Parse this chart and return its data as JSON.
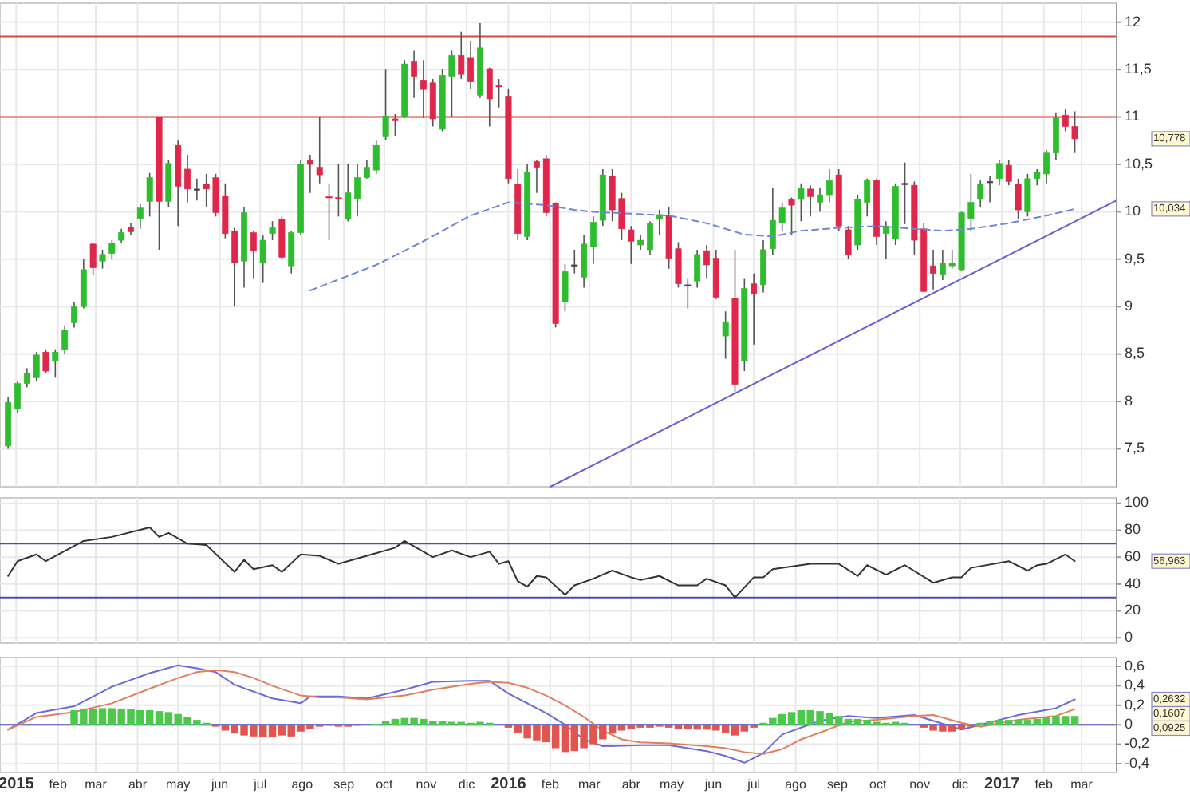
{
  "chart_data": [
    {
      "type": "candlestick",
      "xlim": [
        "2014-12-20",
        "2017-03-27"
      ],
      "ylim": [
        7.1,
        12.2
      ],
      "tick_labels": "y",
      "grid": true,
      "xticks": [
        {
          "value": "2015-01-01",
          "label": null
        },
        {
          "value": "2015-02-01",
          "label": null
        },
        {
          "value": "2015-03-01",
          "label": null
        },
        {
          "value": "2015-04-01",
          "label": null
        },
        {
          "value": "2015-05-01",
          "label": null
        },
        {
          "value": "2015-06-01",
          "label": null
        },
        {
          "value": "2015-07-01",
          "label": null
        },
        {
          "value": "2015-08-01",
          "label": null
        },
        {
          "value": "2015-09-01",
          "label": null
        },
        {
          "value": "2015-10-01",
          "label": null
        },
        {
          "value": "2015-11-01",
          "label": null
        },
        {
          "value": "2015-12-01",
          "label": null
        },
        {
          "value": "2016-01-01",
          "label": null
        },
        {
          "value": "2016-02-01",
          "label": null
        },
        {
          "value": "2016-03-01",
          "label": null
        },
        {
          "value": "2016-04-01",
          "label": null
        },
        {
          "value": "2016-05-01",
          "label": null
        },
        {
          "value": "2016-06-01",
          "label": null
        },
        {
          "value": "2016-07-01",
          "label": null
        },
        {
          "value": "2016-08-01",
          "label": null
        },
        {
          "value": "2016-09-01",
          "label": null
        },
        {
          "value": "2016-10-01",
          "label": null
        },
        {
          "value": "2016-11-01",
          "label": null
        },
        {
          "value": "2016-12-01",
          "label": null
        },
        {
          "value": "2017-01-01",
          "label": null
        },
        {
          "value": "2017-02-01",
          "label": null
        },
        {
          "value": "2017-03-01",
          "label": null
        }
      ],
      "yticks": [
        {
          "value": 7.5,
          "label": "7,5"
        },
        8,
        {
          "value": 8.5,
          "label": "8,5"
        },
        9,
        {
          "value": 9.5,
          "label": "9,5"
        },
        10,
        {
          "value": 10.5,
          "label": "10,5"
        },
        11,
        {
          "value": 11.5,
          "label": "11,5"
        },
        12
      ],
      "x": [
        "2014-12-26",
        "2015-01-02",
        "2015-01-09",
        "2015-01-16",
        "2015-01-23",
        "2015-01-30",
        "2015-02-06",
        "2015-02-13",
        "2015-02-20",
        "2015-02-27",
        "2015-03-06",
        "2015-03-13",
        "2015-03-20",
        "2015-03-27",
        "2015-04-03",
        "2015-04-10",
        "2015-04-17",
        "2015-04-24",
        "2015-05-01",
        "2015-05-08",
        "2015-05-15",
        "2015-05-22",
        "2015-05-29",
        "2015-06-05",
        "2015-06-12",
        "2015-06-19",
        "2015-06-26",
        "2015-07-03",
        "2015-07-10",
        "2015-07-17",
        "2015-07-24",
        "2015-07-31",
        "2015-08-07",
        "2015-08-14",
        "2015-08-21",
        "2015-08-28",
        "2015-09-04",
        "2015-09-11",
        "2015-09-18",
        "2015-09-25",
        "2015-10-02",
        "2015-10-09",
        "2015-10-16",
        "2015-10-23",
        "2015-10-30",
        "2015-11-06",
        "2015-11-13",
        "2015-11-20",
        "2015-11-27",
        "2015-12-04",
        "2015-12-11",
        "2015-12-18",
        "2015-12-25",
        "2016-01-01",
        "2016-01-08",
        "2016-01-15",
        "2016-01-22",
        "2016-01-29",
        "2016-02-05",
        "2016-02-12",
        "2016-02-19",
        "2016-02-26",
        "2016-03-04",
        "2016-03-11",
        "2016-03-18",
        "2016-03-25",
        "2016-04-01",
        "2016-04-08",
        "2016-04-15",
        "2016-04-22",
        "2016-04-29",
        "2016-05-06",
        "2016-05-13",
        "2016-05-20",
        "2016-05-27",
        "2016-06-03",
        "2016-06-10",
        "2016-06-17",
        "2016-06-24",
        "2016-07-01",
        "2016-07-08",
        "2016-07-15",
        "2016-07-22",
        "2016-07-29",
        "2016-08-05",
        "2016-08-12",
        "2016-08-19",
        "2016-08-26",
        "2016-09-02",
        "2016-09-09",
        "2016-09-16",
        "2016-09-23",
        "2016-09-30",
        "2016-10-07",
        "2016-10-14",
        "2016-10-21",
        "2016-10-28",
        "2016-11-04",
        "2016-11-11",
        "2016-11-18",
        "2016-11-25",
        "2016-12-02",
        "2016-12-09",
        "2016-12-16",
        "2016-12-23",
        "2016-12-30",
        "2017-01-06",
        "2017-01-13",
        "2017-01-20",
        "2017-01-27",
        "2017-02-03",
        "2017-02-10",
        "2017-02-17",
        "2017-02-24"
      ],
      "ohlc": [
        [
          7.53,
          8.05,
          7.5,
          7.99
        ],
        [
          7.92,
          8.22,
          7.88,
          8.19
        ],
        [
          8.19,
          8.35,
          8.15,
          8.3
        ],
        [
          8.25,
          8.52,
          8.22,
          8.49
        ],
        [
          8.52,
          8.55,
          8.3,
          8.32
        ],
        [
          8.43,
          8.55,
          8.25,
          8.52
        ],
        [
          8.55,
          8.8,
          8.5,
          8.75
        ],
        [
          8.83,
          9.05,
          8.78,
          9.0
        ],
        [
          9.0,
          9.5,
          8.98,
          9.39
        ],
        [
          9.66,
          9.67,
          9.33,
          9.41
        ],
        [
          9.48,
          9.6,
          9.4,
          9.55
        ],
        [
          9.56,
          9.7,
          9.5,
          9.67
        ],
        [
          9.7,
          9.82,
          9.67,
          9.78
        ],
        [
          9.84,
          9.88,
          9.76,
          9.79
        ],
        [
          9.93,
          10.08,
          9.82,
          10.04
        ],
        [
          10.11,
          10.41,
          9.95,
          10.36
        ],
        [
          11.0,
          11.0,
          9.6,
          10.11
        ],
        [
          10.11,
          10.55,
          10.05,
          10.51
        ],
        [
          10.7,
          10.75,
          9.85,
          10.27
        ],
        [
          10.45,
          10.6,
          10.1,
          10.24
        ],
        [
          10.24,
          10.35,
          10.12,
          10.24
        ],
        [
          10.29,
          10.4,
          10.05,
          10.24
        ],
        [
          10.36,
          10.4,
          9.95,
          9.99
        ],
        [
          10.17,
          10.3,
          9.72,
          9.77
        ],
        [
          9.8,
          9.83,
          9.0,
          9.46
        ],
        [
          9.48,
          10.05,
          9.2,
          9.99
        ],
        [
          9.78,
          9.8,
          9.3,
          9.59
        ],
        [
          9.46,
          9.75,
          9.25,
          9.7
        ],
        [
          9.77,
          9.9,
          9.7,
          9.83
        ],
        [
          9.92,
          9.95,
          9.5,
          9.52
        ],
        [
          9.43,
          9.8,
          9.35,
          9.78
        ],
        [
          9.78,
          10.55,
          9.75,
          10.5
        ],
        [
          10.54,
          10.6,
          10.2,
          10.5
        ],
        [
          10.47,
          11.0,
          10.3,
          10.39
        ],
        [
          10.16,
          10.3,
          9.7,
          10.15
        ],
        [
          10.15,
          10.5,
          9.95,
          10.14
        ],
        [
          9.92,
          10.5,
          9.9,
          10.2
        ],
        [
          10.14,
          10.5,
          9.95,
          10.36
        ],
        [
          10.36,
          10.55,
          10.35,
          10.47
        ],
        [
          10.44,
          10.75,
          10.4,
          10.7
        ],
        [
          10.79,
          11.5,
          10.76,
          11.01
        ],
        [
          10.98,
          11.03,
          10.8,
          10.96
        ],
        [
          11.01,
          11.6,
          10.99,
          11.56
        ],
        [
          11.58,
          11.7,
          11.2,
          11.43
        ],
        [
          11.39,
          11.6,
          10.99,
          11.29
        ],
        [
          11.36,
          11.4,
          10.9,
          10.98
        ],
        [
          10.87,
          11.5,
          10.85,
          11.44
        ],
        [
          11.43,
          11.7,
          11.0,
          11.65
        ],
        [
          11.65,
          11.9,
          11.4,
          11.45
        ],
        [
          11.62,
          11.8,
          11.3,
          11.37
        ],
        [
          11.23,
          11.99,
          11.2,
          11.73
        ],
        [
          11.51,
          11.52,
          10.9,
          11.19
        ],
        [
          11.33,
          11.4,
          11.1,
          11.32
        ],
        [
          11.22,
          11.3,
          10.3,
          10.35
        ],
        [
          10.29,
          10.45,
          9.7,
          9.77
        ],
        [
          9.74,
          10.5,
          9.7,
          10.42
        ],
        [
          10.53,
          10.55,
          10.2,
          10.47
        ],
        [
          10.56,
          10.6,
          9.95,
          9.99
        ],
        [
          10.09,
          10.1,
          8.78,
          8.82
        ],
        [
          9.05,
          9.45,
          8.95,
          9.37
        ],
        [
          9.44,
          9.6,
          9.35,
          9.44
        ],
        [
          9.31,
          9.75,
          9.2,
          9.66
        ],
        [
          9.63,
          9.95,
          9.45,
          9.89
        ],
        [
          9.91,
          10.45,
          9.85,
          10.39
        ],
        [
          10.38,
          10.45,
          9.9,
          10.02
        ],
        [
          10.14,
          10.2,
          9.7,
          9.82
        ],
        [
          9.81,
          9.85,
          9.45,
          9.69
        ],
        [
          9.65,
          9.75,
          9.6,
          9.7
        ],
        [
          9.6,
          9.9,
          9.55,
          9.88
        ],
        [
          9.92,
          10.02,
          9.75,
          9.97
        ],
        [
          9.96,
          10.05,
          9.4,
          9.51
        ],
        [
          9.61,
          9.68,
          9.2,
          9.24
        ],
        [
          9.23,
          9.3,
          8.98,
          9.23
        ],
        [
          9.27,
          9.6,
          9.2,
          9.55
        ],
        [
          9.59,
          9.65,
          9.3,
          9.44
        ],
        [
          9.51,
          9.6,
          9.08,
          9.1
        ],
        [
          8.69,
          8.95,
          8.45,
          8.84
        ],
        [
          9.09,
          9.6,
          8.1,
          8.18
        ],
        [
          8.43,
          9.3,
          8.32,
          9.19
        ],
        [
          9.24,
          9.35,
          8.6,
          9.13
        ],
        [
          9.23,
          9.7,
          9.15,
          9.6
        ],
        [
          9.61,
          10.25,
          9.55,
          9.91
        ],
        [
          9.88,
          10.1,
          9.8,
          10.04
        ],
        [
          10.13,
          10.15,
          9.75,
          10.07
        ],
        [
          10.13,
          10.3,
          9.9,
          10.25
        ],
        [
          10.24,
          10.28,
          9.95,
          10.16
        ],
        [
          10.1,
          10.25,
          10.0,
          10.18
        ],
        [
          10.18,
          10.45,
          10.1,
          10.33
        ],
        [
          10.39,
          10.45,
          9.8,
          9.85
        ],
        [
          9.81,
          9.85,
          9.5,
          9.55
        ],
        [
          9.65,
          10.18,
          9.6,
          10.13
        ],
        [
          10.1,
          10.35,
          9.95,
          10.33
        ],
        [
          10.33,
          10.35,
          9.65,
          9.74
        ],
        [
          9.77,
          9.9,
          9.5,
          9.85
        ],
        [
          9.71,
          10.3,
          9.65,
          10.27
        ],
        [
          10.3,
          10.52,
          9.87,
          10.3
        ],
        [
          10.28,
          10.32,
          9.55,
          9.7
        ],
        [
          9.82,
          9.88,
          9.15,
          9.16
        ],
        [
          9.43,
          9.6,
          9.18,
          9.35
        ],
        [
          9.34,
          9.6,
          9.28,
          9.46
        ],
        [
          9.43,
          9.6,
          9.4,
          9.46
        ],
        [
          9.39,
          10.0,
          9.38,
          9.99
        ],
        [
          9.93,
          10.4,
          9.8,
          10.1
        ],
        [
          10.13,
          10.33,
          10.05,
          10.29
        ],
        [
          10.32,
          10.38,
          10.1,
          10.32
        ],
        [
          10.35,
          10.55,
          10.28,
          10.51
        ],
        [
          10.49,
          10.55,
          10.28,
          10.32
        ],
        [
          10.29,
          10.35,
          9.92,
          10.02
        ],
        [
          10.0,
          10.4,
          9.95,
          10.35
        ],
        [
          10.35,
          10.45,
          10.28,
          10.42
        ],
        [
          10.4,
          10.65,
          10.3,
          10.62
        ],
        [
          10.62,
          11.05,
          10.55,
          10.99
        ],
        [
          11.02,
          11.08,
          10.85,
          10.9
        ],
        [
          10.9,
          11.06,
          10.62,
          10.77
        ]
      ],
      "series": [
        {
          "type": "line",
          "color": "#6f86d6",
          "line_style": "dashed",
          "x": [
            "2015-08-07",
            "2015-09-25",
            "2015-10-30",
            "2015-12-04",
            "2016-01-01",
            "2016-01-29",
            "2016-02-19",
            "2016-03-04",
            "2016-04-01",
            "2016-04-29",
            "2016-05-27",
            "2016-06-24",
            "2016-07-15",
            "2016-08-05",
            "2016-09-02",
            "2016-09-30",
            "2016-10-28",
            "2016-11-18",
            "2016-12-09",
            "2017-01-06",
            "2017-02-03",
            "2017-02-24"
          ],
          "values": [
            9.17,
            9.44,
            9.69,
            9.96,
            10.1,
            10.07,
            10.02,
            10.0,
            9.98,
            9.96,
            9.88,
            9.76,
            9.74,
            9.8,
            9.83,
            9.85,
            9.82,
            9.8,
            9.82,
            9.88,
            9.96,
            10.03
          ]
        },
        {
          "type": "line",
          "color": "#6a5fd0",
          "x": [
            "2016-02-01",
            "2017-03-27"
          ],
          "values": [
            7.1,
            10.12
          ]
        }
      ],
      "ref_lines": [
        {
          "axis": "y",
          "value": 11,
          "color": "#d9473d"
        },
        {
          "axis": "y",
          "value": 11.85,
          "color": "#d9473d"
        }
      ],
      "annotations": [
        "10,778",
        "10,034"
      ]
    },
    {
      "type": "line",
      "xlim": [
        "2014-12-20",
        "2017-03-27"
      ],
      "ylim": [
        -4,
        104
      ],
      "tick_labels": "y",
      "grid": true,
      "xticks": [
        {
          "value": "2015-01-01",
          "label": null
        },
        {
          "value": "2015-02-01",
          "label": null
        },
        {
          "value": "2015-03-01",
          "label": null
        },
        {
          "value": "2015-04-01",
          "label": null
        },
        {
          "value": "2015-05-01",
          "label": null
        },
        {
          "value": "2015-06-01",
          "label": null
        },
        {
          "value": "2015-07-01",
          "label": null
        },
        {
          "value": "2015-08-01",
          "label": null
        },
        {
          "value": "2015-09-01",
          "label": null
        },
        {
          "value": "2015-10-01",
          "label": null
        },
        {
          "value": "2015-11-01",
          "label": null
        },
        {
          "value": "2015-12-01",
          "label": null
        },
        {
          "value": "2016-01-01",
          "label": null
        },
        {
          "value": "2016-02-01",
          "label": null
        },
        {
          "value": "2016-03-01",
          "label": null
        },
        {
          "value": "2016-04-01",
          "label": null
        },
        {
          "value": "2016-05-01",
          "label": null
        },
        {
          "value": "2016-06-01",
          "label": null
        },
        {
          "value": "2016-07-01",
          "label": null
        },
        {
          "value": "2016-08-01",
          "label": null
        },
        {
          "value": "2016-09-01",
          "label": null
        },
        {
          "value": "2016-10-01",
          "label": null
        },
        {
          "value": "2016-11-01",
          "label": null
        },
        {
          "value": "2016-12-01",
          "label": null
        },
        {
          "value": "2017-01-01",
          "label": null
        },
        {
          "value": "2017-02-01",
          "label": null
        },
        {
          "value": "2017-03-01",
          "label": null
        }
      ],
      "yticks": [
        0,
        20,
        40,
        60,
        80,
        100
      ],
      "series": [
        {
          "color": "#333333",
          "x": [
            "2014-12-26",
            "2015-01-02",
            "2015-01-16",
            "2015-01-23",
            "2015-02-20",
            "2015-03-13",
            "2015-04-10",
            "2015-04-17",
            "2015-04-24",
            "2015-05-08",
            "2015-05-22",
            "2015-06-12",
            "2015-06-19",
            "2015-06-26",
            "2015-07-10",
            "2015-07-17",
            "2015-07-31",
            "2015-08-14",
            "2015-08-28",
            "2015-09-18",
            "2015-10-09",
            "2015-10-16",
            "2015-11-06",
            "2015-11-20",
            "2015-12-04",
            "2015-12-18",
            "2015-12-25",
            "2016-01-01",
            "2016-01-08",
            "2016-01-15",
            "2016-01-22",
            "2016-01-29",
            "2016-02-12",
            "2016-02-19",
            "2016-03-04",
            "2016-03-18",
            "2016-04-01",
            "2016-04-08",
            "2016-04-22",
            "2016-05-06",
            "2016-05-20",
            "2016-05-27",
            "2016-06-10",
            "2016-06-17",
            "2016-07-01",
            "2016-07-08",
            "2016-07-15",
            "2016-08-12",
            "2016-09-02",
            "2016-09-16",
            "2016-09-23",
            "2016-10-07",
            "2016-10-21",
            "2016-11-11",
            "2016-11-25",
            "2016-12-02",
            "2016-12-09",
            "2017-01-06",
            "2017-01-20",
            "2017-01-27",
            "2017-02-03",
            "2017-02-17",
            "2017-02-24"
          ],
          "values": [
            46,
            57,
            62,
            57,
            72,
            75,
            82,
            75,
            78,
            70,
            69,
            49,
            58,
            51,
            54,
            49,
            62,
            61,
            55,
            61,
            67,
            72,
            60,
            65,
            60,
            64,
            55,
            57,
            42,
            38,
            46,
            45,
            32,
            39,
            44,
            50,
            45,
            43,
            46,
            39,
            39,
            44,
            39,
            30,
            45,
            45,
            51,
            55,
            55,
            46,
            54,
            47,
            54,
            41,
            45,
            45,
            52,
            57,
            50,
            54,
            55,
            62,
            57
          ]
        }
      ],
      "ref_lines": [
        {
          "axis": "y",
          "value": 70,
          "color": "#4b4bb0"
        },
        {
          "axis": "y",
          "value": 30,
          "color": "#4b4bb0"
        }
      ],
      "annotations": [
        "56,963"
      ]
    },
    {
      "type": "bar",
      "xlim": [
        "2014-12-20",
        "2017-03-27"
      ],
      "ylim": [
        -0.49,
        0.69
      ],
      "grid": true,
      "xticks": [
        {
          "value": "2015-01-01",
          "label": "2015"
        },
        {
          "value": "2015-02-01",
          "label": "feb"
        },
        {
          "value": "2015-03-01",
          "label": "mar"
        },
        {
          "value": "2015-04-01",
          "label": "abr"
        },
        {
          "value": "2015-05-01",
          "label": "may"
        },
        {
          "value": "2015-06-01",
          "label": "jun"
        },
        {
          "value": "2015-07-01",
          "label": "jul"
        },
        {
          "value": "2015-08-01",
          "label": "ago"
        },
        {
          "value": "2015-09-01",
          "label": "sep"
        },
        {
          "value": "2015-10-01",
          "label": "oct"
        },
        {
          "value": "2015-11-01",
          "label": "nov"
        },
        {
          "value": "2015-12-01",
          "label": "dic"
        },
        {
          "value": "2016-01-01",
          "label": "2016"
        },
        {
          "value": "2016-02-01",
          "label": "feb"
        },
        {
          "value": "2016-03-01",
          "label": "mar"
        },
        {
          "value": "2016-04-01",
          "label": "abr"
        },
        {
          "value": "2016-05-01",
          "label": "may"
        },
        {
          "value": "2016-06-01",
          "label": "jun"
        },
        {
          "value": "2016-07-01",
          "label": "jul"
        },
        {
          "value": "2016-08-01",
          "label": "ago"
        },
        {
          "value": "2016-09-01",
          "label": "sep"
        },
        {
          "value": "2016-10-01",
          "label": "oct"
        },
        {
          "value": "2016-11-01",
          "label": "nov"
        },
        {
          "value": "2016-12-01",
          "label": "dic"
        },
        {
          "value": "2017-01-01",
          "label": "2017"
        },
        {
          "value": "2017-02-01",
          "label": "feb"
        },
        {
          "value": "2017-03-01",
          "label": "mar"
        }
      ],
      "yticks": [
        {
          "value": -0.4,
          "label": "-0,4"
        },
        {
          "value": -0.2,
          "label": "-0,2"
        },
        0,
        {
          "value": 0.2,
          "label": "0,2"
        },
        {
          "value": 0.4,
          "label": "0,4"
        },
        {
          "value": 0.6,
          "label": "0,6"
        }
      ],
      "series": [
        {
          "type": "line",
          "color": "#6a6ad8",
          "x": [
            "2014-12-26",
            "2015-01-16",
            "2015-02-13",
            "2015-03-13",
            "2015-04-10",
            "2015-05-01",
            "2015-05-15",
            "2015-05-29",
            "2015-06-12",
            "2015-07-10",
            "2015-07-31",
            "2015-08-07",
            "2015-08-28",
            "2015-09-18",
            "2015-10-16",
            "2015-11-06",
            "2015-12-04",
            "2015-12-18",
            "2016-01-01",
            "2016-01-29",
            "2016-02-12",
            "2016-02-26",
            "2016-03-11",
            "2016-04-08",
            "2016-04-29",
            "2016-05-27",
            "2016-06-10",
            "2016-06-24",
            "2016-07-08",
            "2016-07-22",
            "2016-08-19",
            "2016-09-09",
            "2016-09-30",
            "2016-10-28",
            "2016-11-11",
            "2016-12-02",
            "2016-12-16",
            "2017-01-13",
            "2017-02-10",
            "2017-02-24"
          ],
          "values": [
            -0.05,
            0.12,
            0.19,
            0.39,
            0.53,
            0.61,
            0.58,
            0.54,
            0.41,
            0.27,
            0.22,
            0.29,
            0.29,
            0.27,
            0.36,
            0.44,
            0.45,
            0.45,
            0.32,
            0.12,
            0,
            -0.15,
            -0.22,
            -0.21,
            -0.21,
            -0.27,
            -0.32,
            -0.39,
            -0.29,
            -0.1,
            0.04,
            0.09,
            0.07,
            0.1,
            0.04,
            -0.05,
            0,
            0.1,
            0.17,
            0.26
          ]
        },
        {
          "type": "line",
          "color": "#e0805f",
          "x": [
            "2014-12-26",
            "2015-01-16",
            "2015-02-13",
            "2015-03-13",
            "2015-04-10",
            "2015-05-01",
            "2015-05-15",
            "2015-05-29",
            "2015-06-12",
            "2015-06-26",
            "2015-07-10",
            "2015-07-31",
            "2015-08-14",
            "2015-08-28",
            "2015-09-18",
            "2015-10-16",
            "2015-11-06",
            "2015-12-04",
            "2015-12-18",
            "2016-01-01",
            "2016-01-15",
            "2016-01-29",
            "2016-02-12",
            "2016-02-26",
            "2016-03-11",
            "2016-03-25",
            "2016-04-08",
            "2016-04-29",
            "2016-05-27",
            "2016-06-10",
            "2016-06-24",
            "2016-07-08",
            "2016-07-22",
            "2016-08-05",
            "2016-08-19",
            "2016-09-09",
            "2016-09-30",
            "2016-10-28",
            "2016-11-11",
            "2016-12-02",
            "2016-12-16",
            "2017-01-13",
            "2017-02-10",
            "2017-02-24"
          ],
          "values": [
            -0.05,
            0.08,
            0.13,
            0.22,
            0.37,
            0.48,
            0.54,
            0.56,
            0.54,
            0.48,
            0.4,
            0.3,
            0.28,
            0.28,
            0.26,
            0.3,
            0.36,
            0.42,
            0.44,
            0.43,
            0.38,
            0.3,
            0.2,
            0.08,
            -0.06,
            -0.15,
            -0.18,
            -0.19,
            -0.22,
            -0.24,
            -0.28,
            -0.3,
            -0.25,
            -0.15,
            -0.08,
            0.03,
            0.05,
            0.09,
            0.1,
            0.02,
            -0.02,
            0.05,
            0.09,
            0.16
          ]
        },
        {
          "color": "#4cc94c",
          "x": [
            "2015-02-13",
            "2015-02-20",
            "2015-02-27",
            "2015-03-06",
            "2015-03-13",
            "2015-03-20",
            "2015-03-27",
            "2015-04-03",
            "2015-04-10",
            "2015-04-17",
            "2015-04-24",
            "2015-05-01",
            "2015-05-08",
            "2015-05-15",
            "2015-05-22",
            "2015-09-25",
            "2015-10-02",
            "2015-10-09",
            "2015-10-16",
            "2015-10-23",
            "2015-10-30",
            "2015-11-06",
            "2015-11-13",
            "2015-11-20",
            "2015-11-27",
            "2015-12-04",
            "2015-12-11",
            "2015-12-18",
            "2016-07-08",
            "2016-07-15",
            "2016-07-22",
            "2016-07-29",
            "2016-08-05",
            "2016-08-12",
            "2016-08-19",
            "2016-08-26",
            "2016-09-02",
            "2016-09-09",
            "2016-09-16",
            "2016-09-23",
            "2016-09-30",
            "2016-10-07",
            "2016-10-14",
            "2016-10-21",
            "2016-12-16",
            "2016-12-23",
            "2016-12-30",
            "2017-01-06",
            "2017-01-13",
            "2017-01-20",
            "2017-01-27",
            "2017-02-03",
            "2017-02-10",
            "2017-02-17",
            "2017-02-24"
          ],
          "values": [
            0.15,
            0.16,
            0.16,
            0.17,
            0.17,
            0.16,
            0.16,
            0.15,
            0.15,
            0.14,
            0.13,
            0.11,
            0.08,
            0.05,
            0.02,
            0.01,
            0.04,
            0.06,
            0.07,
            0.07,
            0.06,
            0.04,
            0.04,
            0.03,
            0.03,
            0.02,
            0.03,
            0.02,
            0.02,
            0.07,
            0.11,
            0.13,
            0.15,
            0.15,
            0.14,
            0.12,
            0.09,
            0.06,
            0.06,
            0.05,
            0.03,
            0.02,
            0.03,
            0.02,
            0.02,
            0.04,
            0.05,
            0.05,
            0.05,
            0.05,
            0.06,
            0.08,
            0.09,
            0.09,
            0.09
          ]
        },
        {
          "color": "#e0554f",
          "x": [
            "2015-05-29",
            "2015-06-05",
            "2015-06-12",
            "2015-06-19",
            "2015-06-26",
            "2015-07-03",
            "2015-07-10",
            "2015-07-17",
            "2015-07-24",
            "2015-07-31",
            "2015-08-07",
            "2015-08-14",
            "2015-08-21",
            "2015-08-28",
            "2015-09-04",
            "2015-09-11",
            "2016-01-01",
            "2016-01-08",
            "2016-01-15",
            "2016-01-22",
            "2016-01-29",
            "2016-02-05",
            "2016-02-12",
            "2016-02-19",
            "2016-02-26",
            "2016-03-04",
            "2016-03-11",
            "2016-03-18",
            "2016-03-25",
            "2016-04-01",
            "2016-04-08",
            "2016-04-15",
            "2016-04-22",
            "2016-04-29",
            "2016-05-06",
            "2016-05-13",
            "2016-05-20",
            "2016-05-27",
            "2016-06-03",
            "2016-06-10",
            "2016-06-17",
            "2016-06-24",
            "2016-07-01",
            "2016-11-04",
            "2016-11-11",
            "2016-11-18",
            "2016-11-25",
            "2016-12-02",
            "2016-12-09"
          ],
          "values": [
            -0.02,
            -0.06,
            -0.09,
            -0.11,
            -0.12,
            -0.13,
            -0.13,
            -0.11,
            -0.12,
            -0.07,
            -0.04,
            -0.02,
            -0.01,
            -0.02,
            -0.02,
            -0.01,
            -0.03,
            -0.08,
            -0.14,
            -0.16,
            -0.18,
            -0.24,
            -0.28,
            -0.27,
            -0.24,
            -0.2,
            -0.15,
            -0.09,
            -0.06,
            -0.04,
            -0.03,
            -0.03,
            -0.02,
            -0.03,
            -0.04,
            -0.04,
            -0.05,
            -0.05,
            -0.06,
            -0.08,
            -0.11,
            -0.07,
            -0.03,
            -0.03,
            -0.06,
            -0.07,
            -0.07,
            -0.05,
            -0.02
          ]
        }
      ],
      "ref_lines": [
        {
          "axis": "y",
          "value": 0,
          "color": "#4b4bb0"
        }
      ],
      "annotations": [
        "0,2632",
        "0,1607",
        "0,0925"
      ]
    }
  ]
}
